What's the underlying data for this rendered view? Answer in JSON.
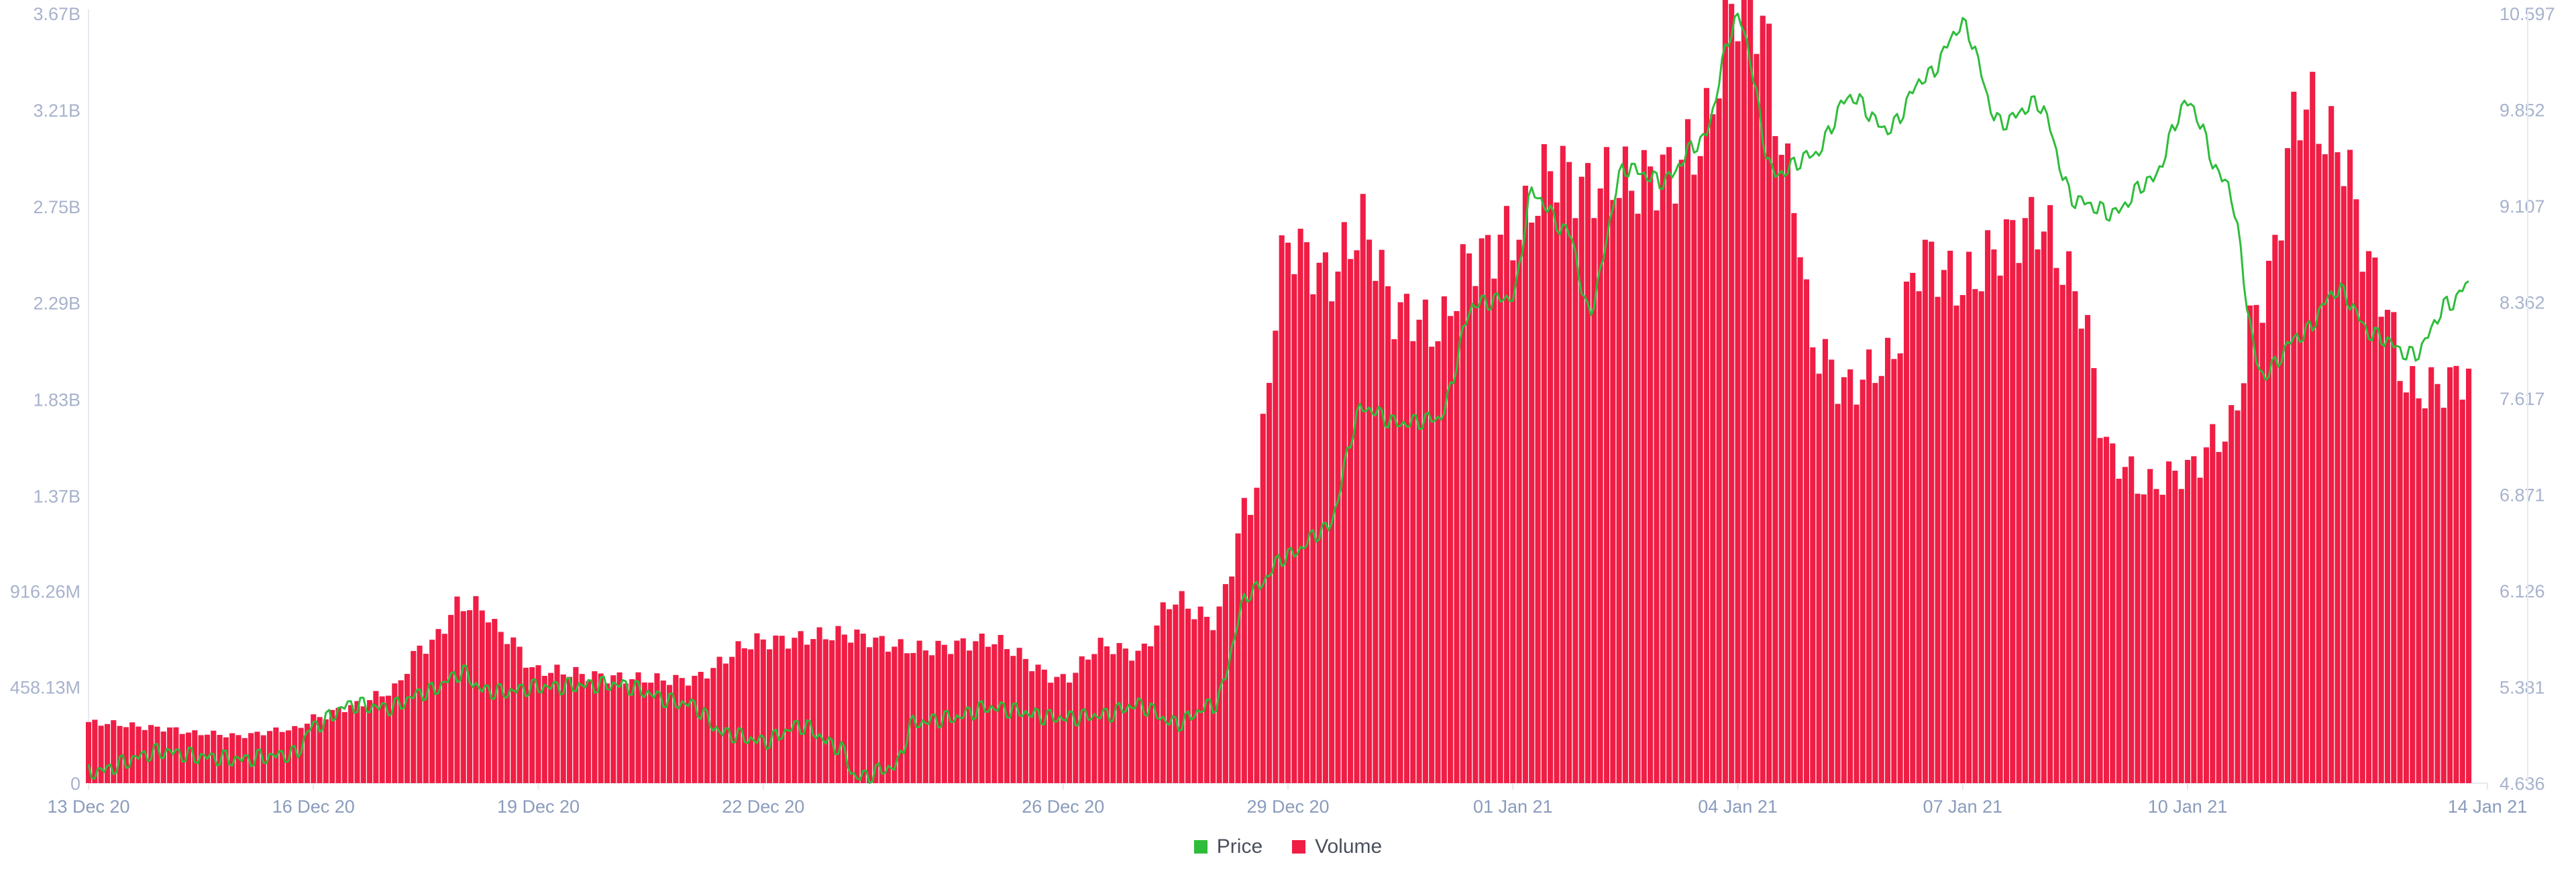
{
  "colors": {
    "price": "#2ebd3a",
    "volume": "#f01d45",
    "axis_text": "#a7b2cc",
    "tick_text": "#8a9bbd",
    "grid": "#e6e9ef"
  },
  "legend": [
    {
      "label": "Price",
      "color": "#2ebd3a",
      "icon": "square-swatch"
    },
    {
      "label": "Volume",
      "color": "#f01d45",
      "icon": "square-swatch"
    }
  ],
  "chart_data": {
    "type": "bar",
    "title": "",
    "grid": false,
    "legend_position": "bottom-center",
    "x_range": [
      "2020-12-13",
      "2021-01-14"
    ],
    "x_ticks": [
      {
        "date": "2020-12-13",
        "label": "13 Dec 20"
      },
      {
        "date": "2020-12-16",
        "label": "16 Dec 20"
      },
      {
        "date": "2020-12-19",
        "label": "19 Dec 20"
      },
      {
        "date": "2020-12-22",
        "label": "22 Dec 20"
      },
      {
        "date": "2020-12-26",
        "label": "26 Dec 20"
      },
      {
        "date": "2020-12-29",
        "label": "29 Dec 20"
      },
      {
        "date": "2021-01-01",
        "label": "01 Jan 21"
      },
      {
        "date": "2021-01-04",
        "label": "04 Jan 21"
      },
      {
        "date": "2021-01-07",
        "label": "07 Jan 21"
      },
      {
        "date": "2021-01-10",
        "label": "10 Jan 21"
      },
      {
        "date": "2021-01-14",
        "label": "14 Jan 21"
      }
    ],
    "y_left": {
      "ylim": [
        0,
        3670000000
      ],
      "tick_values": [
        0,
        458130000,
        916260000,
        1370000000,
        1830000000,
        2290000000,
        2750000000,
        3210000000,
        3670000000
      ],
      "tick_labels": [
        "0",
        "458.13M",
        "916.26M",
        "1.37B",
        "1.83B",
        "2.29B",
        "2.75B",
        "3.21B",
        "3.67B"
      ]
    },
    "y_right": {
      "ylim": [
        4.636,
        10.597
      ],
      "tick_values": [
        4.636,
        5.381,
        6.126,
        6.871,
        7.617,
        8.362,
        9.107,
        9.852,
        10.597
      ],
      "tick_labels": [
        "4.636",
        "5.381",
        "6.126",
        "6.871",
        "7.617",
        "8.362",
        "9.107",
        "9.852",
        "10.597"
      ]
    },
    "series": [
      {
        "name": "Volume",
        "type": "bar",
        "axis": "left",
        "points": [
          [
            "2020-12-13",
            280000000
          ],
          [
            "2020-12-14",
            270000000
          ],
          [
            "2020-12-14T12:00",
            240000000
          ],
          [
            "2020-12-15",
            220000000
          ],
          [
            "2020-12-15T18:00",
            260000000
          ],
          [
            "2020-12-16",
            320000000
          ],
          [
            "2020-12-16T12:00",
            370000000
          ],
          [
            "2020-12-17",
            420000000
          ],
          [
            "2020-12-17T12:00",
            650000000
          ],
          [
            "2020-12-18",
            880000000
          ],
          [
            "2020-12-18T06:00",
            860000000
          ],
          [
            "2020-12-18T12:00",
            720000000
          ],
          [
            "2020-12-19",
            520000000
          ],
          [
            "2020-12-20",
            520000000
          ],
          [
            "2020-12-21",
            480000000
          ],
          [
            "2020-12-22",
            700000000
          ],
          [
            "2020-12-23",
            690000000
          ],
          [
            "2020-12-24",
            660000000
          ],
          [
            "2020-12-25",
            660000000
          ],
          [
            "2020-12-26",
            510000000
          ],
          [
            "2020-12-26T12:00",
            660000000
          ],
          [
            "2020-12-27",
            600000000
          ],
          [
            "2020-12-27T12:00",
            870000000
          ],
          [
            "2020-12-28",
            800000000
          ],
          [
            "2020-12-28T12:00",
            1350000000
          ],
          [
            "2020-12-29",
            2500000000
          ],
          [
            "2020-12-29T12:00",
            2400000000
          ],
          [
            "2020-12-30",
            2730000000
          ],
          [
            "2020-12-30T12:00",
            2250000000
          ],
          [
            "2020-12-31",
            2100000000
          ],
          [
            "2020-12-31T12:00",
            2500000000
          ],
          [
            "2021-01-01",
            2700000000
          ],
          [
            "2021-01-01T12:00",
            2940000000
          ],
          [
            "2021-01-02",
            2750000000
          ],
          [
            "2021-01-02T12:00",
            2850000000
          ],
          [
            "2021-01-03",
            3000000000
          ],
          [
            "2021-01-03T12:00",
            3080000000
          ],
          [
            "2021-01-04",
            3640000000
          ],
          [
            "2021-01-04T06:00",
            3600000000
          ],
          [
            "2021-01-04T18:00",
            2850000000
          ],
          [
            "2021-01-05",
            2150000000
          ],
          [
            "2021-01-05T12:00",
            1900000000
          ],
          [
            "2021-01-06",
            1950000000
          ],
          [
            "2021-01-06T12:00",
            2500000000
          ],
          [
            "2021-01-07",
            2450000000
          ],
          [
            "2021-01-07T12:00",
            2580000000
          ],
          [
            "2021-01-08",
            2600000000
          ],
          [
            "2021-01-08T12:00",
            2350000000
          ],
          [
            "2021-01-09",
            1600000000
          ],
          [
            "2021-01-09T12:00",
            1420000000
          ],
          [
            "2021-01-10",
            1450000000
          ],
          [
            "2021-01-10T12:00",
            1650000000
          ],
          [
            "2021-01-11",
            2400000000
          ],
          [
            "2021-01-11T12:00",
            3250000000
          ],
          [
            "2021-01-12",
            2950000000
          ],
          [
            "2021-01-12T12:00",
            2400000000
          ],
          [
            "2021-01-13",
            1930000000
          ],
          [
            "2021-01-13T18:00",
            1920000000
          ]
        ]
      },
      {
        "name": "Price",
        "type": "line",
        "axis": "right",
        "points": [
          [
            "2020-12-13",
            4.72
          ],
          [
            "2020-12-14",
            4.88
          ],
          [
            "2020-12-14T12:00",
            4.84
          ],
          [
            "2020-12-15",
            4.82
          ],
          [
            "2020-12-15T18:00",
            4.86
          ],
          [
            "2020-12-16",
            5.08
          ],
          [
            "2020-12-16T12:00",
            5.24
          ],
          [
            "2020-12-17",
            5.22
          ],
          [
            "2020-12-17T12:00",
            5.34
          ],
          [
            "2020-12-18",
            5.49
          ],
          [
            "2020-12-18T06:00",
            5.36
          ],
          [
            "2020-12-18T12:00",
            5.34
          ],
          [
            "2020-12-19",
            5.38
          ],
          [
            "2020-12-20",
            5.4
          ],
          [
            "2020-12-21",
            5.25
          ],
          [
            "2020-12-21T12:00",
            5.02
          ],
          [
            "2020-12-22",
            4.96
          ],
          [
            "2020-12-22T12:00",
            5.08
          ],
          [
            "2020-12-23",
            4.92
          ],
          [
            "2020-12-23T06:00",
            4.68
          ],
          [
            "2020-12-23T18:00",
            4.76
          ],
          [
            "2020-12-24",
            5.1
          ],
          [
            "2020-12-24T12:00",
            5.14
          ],
          [
            "2020-12-25",
            5.22
          ],
          [
            "2020-12-26",
            5.14
          ],
          [
            "2020-12-26T12:00",
            5.16
          ],
          [
            "2020-12-27",
            5.24
          ],
          [
            "2020-12-27T12:00",
            5.1
          ],
          [
            "2020-12-28",
            5.24
          ],
          [
            "2020-12-28T12:00",
            6.12
          ],
          [
            "2020-12-29",
            6.4
          ],
          [
            "2020-12-29T12:00",
            6.6
          ],
          [
            "2020-12-30",
            7.54
          ],
          [
            "2020-12-30T12:00",
            7.42
          ],
          [
            "2020-12-31",
            7.46
          ],
          [
            "2020-12-31T12:00",
            8.35
          ],
          [
            "2021-01-01",
            8.4
          ],
          [
            "2021-01-01T06:00",
            9.2
          ],
          [
            "2021-01-01T18:00",
            8.9
          ],
          [
            "2021-01-02",
            8.3
          ],
          [
            "2021-01-02T12:00",
            9.4
          ],
          [
            "2021-01-03",
            9.3
          ],
          [
            "2021-01-03T12:00",
            9.6
          ],
          [
            "2021-01-04",
            10.55
          ],
          [
            "2021-01-04T12:00",
            9.35
          ],
          [
            "2021-01-05",
            9.5
          ],
          [
            "2021-01-05T12:00",
            9.95
          ],
          [
            "2021-01-06",
            9.7
          ],
          [
            "2021-01-06T12:00",
            10.1
          ],
          [
            "2021-01-07",
            10.5
          ],
          [
            "2021-01-07T12:00",
            9.75
          ],
          [
            "2021-01-08",
            9.9
          ],
          [
            "2021-01-08T12:00",
            9.15
          ],
          [
            "2021-01-09",
            9.05
          ],
          [
            "2021-01-09T12:00",
            9.3
          ],
          [
            "2021-01-10",
            9.9
          ],
          [
            "2021-01-10T12:00",
            9.3
          ],
          [
            "2021-01-11",
            7.8
          ],
          [
            "2021-01-11T12:00",
            8.1
          ],
          [
            "2021-01-12",
            8.45
          ],
          [
            "2021-01-12T12:00",
            8.1
          ],
          [
            "2021-01-13",
            7.95
          ],
          [
            "2021-01-13T12:00",
            8.35
          ],
          [
            "2021-01-13T18:00",
            8.5
          ]
        ]
      }
    ]
  }
}
